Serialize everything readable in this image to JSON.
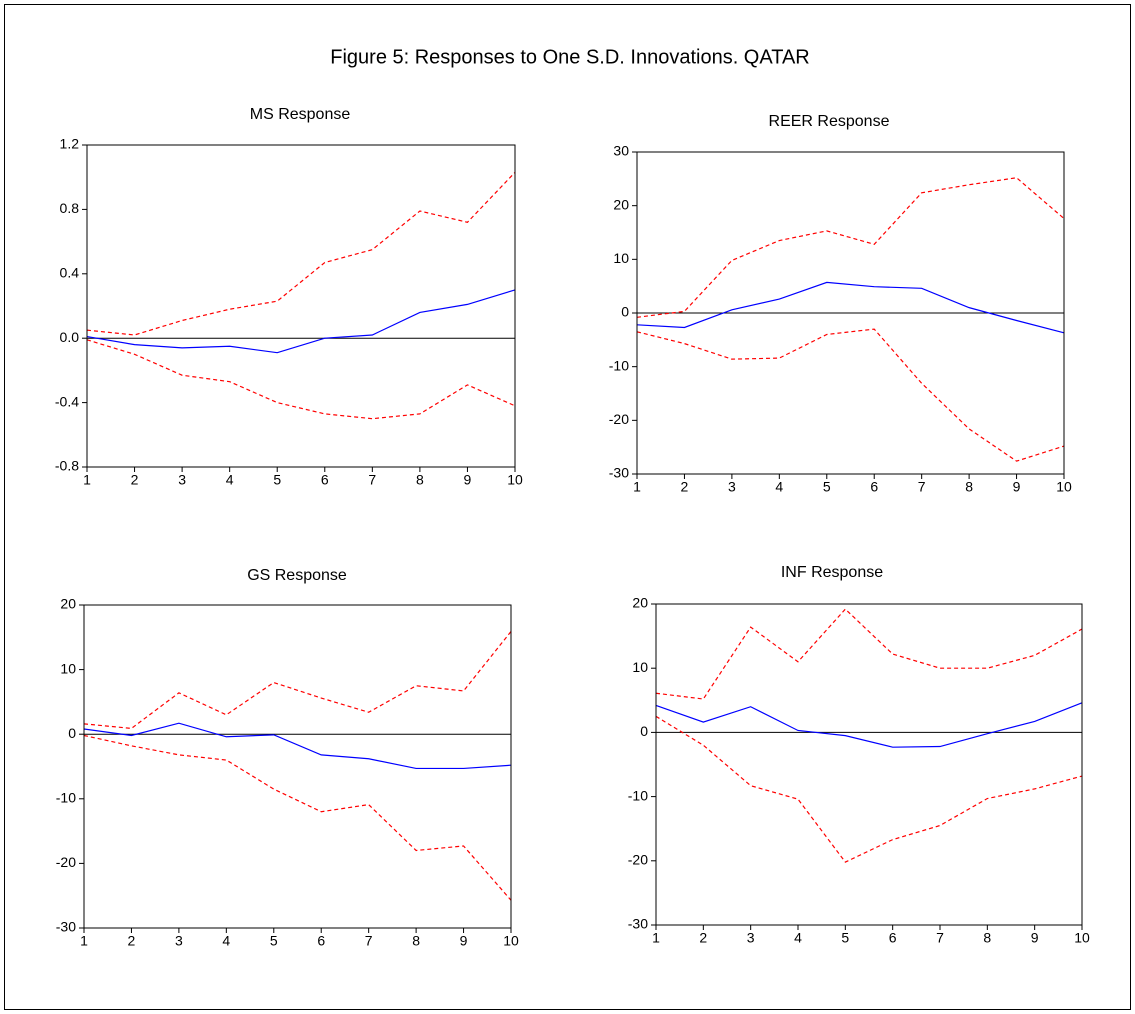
{
  "title": "Figure 5: Responses to One S.D. Innovations. QATAR",
  "chart_data": [
    {
      "type": "line",
      "title": "MS Response",
      "x": [
        1,
        2,
        3,
        4,
        5,
        6,
        7,
        8,
        9,
        10
      ],
      "xlim": [
        1,
        10
      ],
      "xticks": [
        1,
        2,
        3,
        4,
        5,
        6,
        7,
        8,
        9,
        10
      ],
      "ylim": [
        -0.8,
        1.2
      ],
      "yticks": [
        -0.8,
        -0.4,
        {
          "value": 0,
          "label": "0.0"
        },
        0.4,
        0.8,
        1.2
      ],
      "series": [
        {
          "color": "#0000ff",
          "line_style": "solid",
          "values": [
            0.01,
            -0.04,
            -0.06,
            -0.05,
            -0.09,
            0.0,
            0.02,
            0.16,
            0.21,
            0.3
          ]
        },
        {
          "color": "#ff0000",
          "line_style": "dashed",
          "values": [
            0.05,
            0.02,
            0.11,
            0.18,
            0.23,
            0.47,
            0.55,
            0.79,
            0.72,
            1.03
          ]
        },
        {
          "color": "#ff0000",
          "line_style": "dashed",
          "values": [
            -0.01,
            -0.1,
            -0.23,
            -0.27,
            -0.4,
            -0.47,
            -0.5,
            -0.47,
            -0.29,
            -0.42
          ]
        }
      ]
    },
    {
      "type": "line",
      "title": "REER Response",
      "x": [
        1,
        2,
        3,
        4,
        5,
        6,
        7,
        8,
        9,
        10
      ],
      "xlim": [
        1,
        10
      ],
      "xticks": [
        1,
        2,
        3,
        4,
        5,
        6,
        7,
        8,
        9,
        10
      ],
      "ylim": [
        -30,
        30
      ],
      "yticks": [
        -30,
        -20,
        -10,
        0,
        10,
        20,
        30
      ],
      "series": [
        {
          "color": "#0000ff",
          "line_style": "solid",
          "values": [
            -2.2,
            -2.7,
            0.6,
            2.6,
            5.7,
            4.9,
            4.6,
            1.0,
            -1.4,
            -3.7
          ]
        },
        {
          "color": "#ff0000",
          "line_style": "dashed",
          "values": [
            -0.8,
            0.3,
            9.8,
            13.5,
            15.3,
            12.8,
            22.4,
            23.9,
            25.2,
            17.6
          ]
        },
        {
          "color": "#ff0000",
          "line_style": "dashed",
          "values": [
            -3.5,
            -5.7,
            -8.6,
            -8.4,
            -4.0,
            -3.0,
            -13.1,
            -21.6,
            -27.6,
            -24.8
          ]
        }
      ]
    },
    {
      "type": "line",
      "title": "GS Response",
      "x": [
        1,
        2,
        3,
        4,
        5,
        6,
        7,
        8,
        9,
        10
      ],
      "xlim": [
        1,
        10
      ],
      "xticks": [
        1,
        2,
        3,
        4,
        5,
        6,
        7,
        8,
        9,
        10
      ],
      "ylim": [
        -30,
        20
      ],
      "yticks": [
        -30,
        -20,
        -10,
        0,
        10,
        20
      ],
      "series": [
        {
          "color": "#0000ff",
          "line_style": "solid",
          "values": [
            0.8,
            -0.2,
            1.7,
            -0.4,
            -0.1,
            -3.2,
            -3.8,
            -5.3,
            -5.3,
            -4.8
          ]
        },
        {
          "color": "#ff0000",
          "line_style": "dashed",
          "values": [
            1.6,
            0.9,
            6.4,
            3.0,
            8.0,
            5.6,
            3.4,
            7.5,
            6.7,
            15.9
          ]
        },
        {
          "color": "#ff0000",
          "line_style": "dashed",
          "values": [
            -0.2,
            -1.8,
            -3.2,
            -4.0,
            -8.5,
            -12.0,
            -10.9,
            -18.0,
            -17.3,
            -25.7
          ]
        }
      ]
    },
    {
      "type": "line",
      "title": "INF Response",
      "x": [
        1,
        2,
        3,
        4,
        5,
        6,
        7,
        8,
        9,
        10
      ],
      "xlim": [
        1,
        10
      ],
      "xticks": [
        1,
        2,
        3,
        4,
        5,
        6,
        7,
        8,
        9,
        10
      ],
      "ylim": [
        -30,
        20
      ],
      "yticks": [
        -30,
        -20,
        -10,
        0,
        10,
        20
      ],
      "series": [
        {
          "color": "#0000ff",
          "line_style": "solid",
          "values": [
            4.2,
            1.6,
            4.0,
            0.3,
            -0.5,
            -2.3,
            -2.2,
            -0.2,
            1.7,
            4.6
          ]
        },
        {
          "color": "#ff0000",
          "line_style": "dashed",
          "values": [
            6.1,
            5.2,
            16.4,
            11.0,
            19.2,
            12.2,
            10.0,
            10.0,
            12.0,
            16.1
          ]
        },
        {
          "color": "#ff0000",
          "line_style": "dashed",
          "values": [
            2.5,
            -2.0,
            -8.3,
            -10.4,
            -20.2,
            -16.7,
            -14.5,
            -10.3,
            -8.8,
            -6.8
          ]
        }
      ]
    }
  ]
}
